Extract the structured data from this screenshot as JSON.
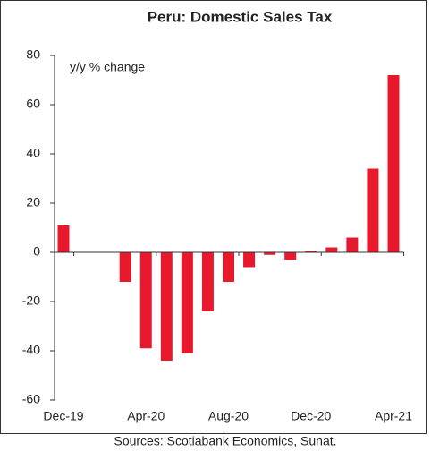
{
  "chart_data": {
    "type": "bar",
    "title": "Peru: Domestic Sales Tax",
    "y_label": "y/y % change",
    "source": "Sources: Scotiabank Economics, Sunat.",
    "categories": [
      "Dec-19",
      null,
      null,
      null,
      "Apr-20",
      null,
      null,
      null,
      "Aug-20",
      null,
      null,
      null,
      "Dec-20",
      null,
      null,
      null,
      "Apr-21"
    ],
    "values": [
      11,
      0,
      0,
      -12,
      -39,
      -44,
      -41,
      -24,
      -12,
      -6,
      -1,
      -3,
      0.5,
      2,
      6,
      34,
      72
    ],
    "color": "#e8192c",
    "ylim": [
      -60,
      80
    ],
    "yticks": [
      -60,
      -40,
      -20,
      0,
      20,
      40,
      60,
      80
    ]
  }
}
